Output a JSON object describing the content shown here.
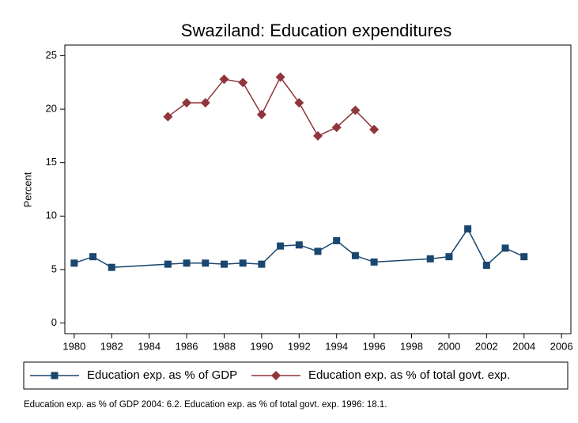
{
  "chart_data": {
    "type": "line",
    "title": "Swaziland: Education expenditures",
    "ylabel": "Percent",
    "note": "Education exp. as % of GDP 2004: 6.2. Education exp. as % of total govt. exp. 1996: 18.1.",
    "xlim": [
      1979.5,
      2006.5
    ],
    "xticks": [
      1980,
      1982,
      1984,
      1986,
      1988,
      1990,
      1992,
      1994,
      1996,
      1998,
      2000,
      2002,
      2004,
      2006
    ],
    "ylim": [
      -1,
      26
    ],
    "yticks": [
      0,
      5,
      10,
      15,
      20,
      25
    ],
    "grid": false,
    "series": [
      {
        "name": "Education exp. as % of GDP",
        "color": "#1a476f",
        "marker": "square",
        "x": [
          1980,
          1981,
          1982,
          1985,
          1986,
          1987,
          1988,
          1989,
          1990,
          1991,
          1992,
          1993,
          1994,
          1995,
          1996,
          1999,
          2000,
          2001,
          2002,
          2003,
          2004
        ],
        "values": [
          5.6,
          6.2,
          5.2,
          5.5,
          5.6,
          5.6,
          5.5,
          5.6,
          5.5,
          7.2,
          7.3,
          6.7,
          7.7,
          6.3,
          5.7,
          6.0,
          6.2,
          8.8,
          5.4,
          7.0,
          6.2
        ]
      },
      {
        "name": "Education exp. as % of total govt. exp.",
        "color": "#90353b",
        "marker": "diamond",
        "x": [
          1985,
          1986,
          1987,
          1988,
          1989,
          1990,
          1991,
          1992,
          1993,
          1994,
          1995,
          1996
        ],
        "values": [
          19.3,
          20.6,
          20.6,
          22.8,
          22.5,
          19.5,
          23.0,
          20.6,
          17.5,
          18.3,
          19.9,
          18.1
        ]
      }
    ]
  }
}
